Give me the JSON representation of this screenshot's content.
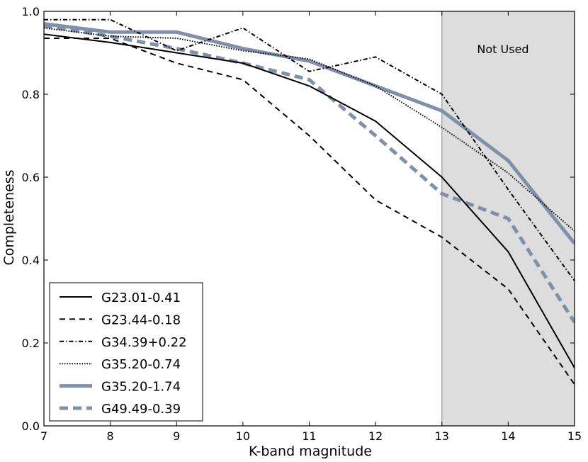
{
  "chart_data": {
    "type": "line",
    "title": "",
    "xlabel": "K-band magnitude",
    "ylabel": "Completeness",
    "xlim": [
      7,
      15
    ],
    "ylim": [
      0.0,
      1.0
    ],
    "xticks": [
      7,
      8,
      9,
      10,
      11,
      12,
      13,
      14,
      15
    ],
    "xtick_labels": [
      "7",
      "8",
      "9",
      "10",
      "11",
      "12",
      "13",
      "14",
      "15"
    ],
    "yticks": [
      0.0,
      0.2,
      0.4,
      0.6,
      0.8,
      1.0
    ],
    "ytick_labels": [
      "0.0",
      "0.2",
      "0.4",
      "0.6",
      "0.8",
      "1.0"
    ],
    "grid": false,
    "legend_position": "lower-left",
    "shaded_region": {
      "x_range": [
        13,
        15
      ],
      "label": "Not Used",
      "color": "#dddddd"
    },
    "series": [
      {
        "name": "G23.01-0.41",
        "style": "solid",
        "color": "#000000",
        "weight": "thin",
        "x": [
          7,
          8,
          9,
          10,
          11,
          12,
          13,
          14,
          15
        ],
        "y": [
          0.945,
          0.925,
          0.9,
          0.875,
          0.82,
          0.735,
          0.6,
          0.42,
          0.14
        ]
      },
      {
        "name": "G23.44-0.18",
        "style": "dashed",
        "color": "#000000",
        "weight": "thin",
        "x": [
          7,
          8,
          9,
          10,
          11,
          12,
          13,
          14,
          15
        ],
        "y": [
          0.935,
          0.935,
          0.875,
          0.835,
          0.7,
          0.545,
          0.455,
          0.33,
          0.1
        ]
      },
      {
        "name": "G34.39+0.22",
        "style": "dashdot",
        "color": "#000000",
        "weight": "thin",
        "x": [
          7,
          8,
          9,
          10,
          11,
          12,
          13,
          14,
          15
        ],
        "y": [
          0.98,
          0.98,
          0.905,
          0.96,
          0.855,
          0.89,
          0.8,
          0.57,
          0.35
        ]
      },
      {
        "name": "G35.20-0.74",
        "style": "dotted",
        "color": "#000000",
        "weight": "thin",
        "x": [
          7,
          8,
          9,
          10,
          11,
          12,
          13,
          14,
          15
        ],
        "y": [
          0.96,
          0.94,
          0.935,
          0.905,
          0.885,
          0.82,
          0.72,
          0.61,
          0.47
        ]
      },
      {
        "name": "G35.20-1.74",
        "style": "solid",
        "color": "#8090aa",
        "weight": "thick",
        "x": [
          7,
          8,
          9,
          10,
          11,
          12,
          13,
          14,
          15
        ],
        "y": [
          0.97,
          0.95,
          0.95,
          0.91,
          0.88,
          0.82,
          0.76,
          0.64,
          0.44
        ]
      },
      {
        "name": "G49.49-0.39",
        "style": "dashed",
        "color": "#8090aa",
        "weight": "thick",
        "x": [
          7,
          8,
          9,
          10,
          11,
          12,
          13,
          14,
          15
        ],
        "y": [
          0.965,
          0.94,
          0.91,
          0.875,
          0.835,
          0.7,
          0.56,
          0.5,
          0.25
        ]
      }
    ]
  }
}
